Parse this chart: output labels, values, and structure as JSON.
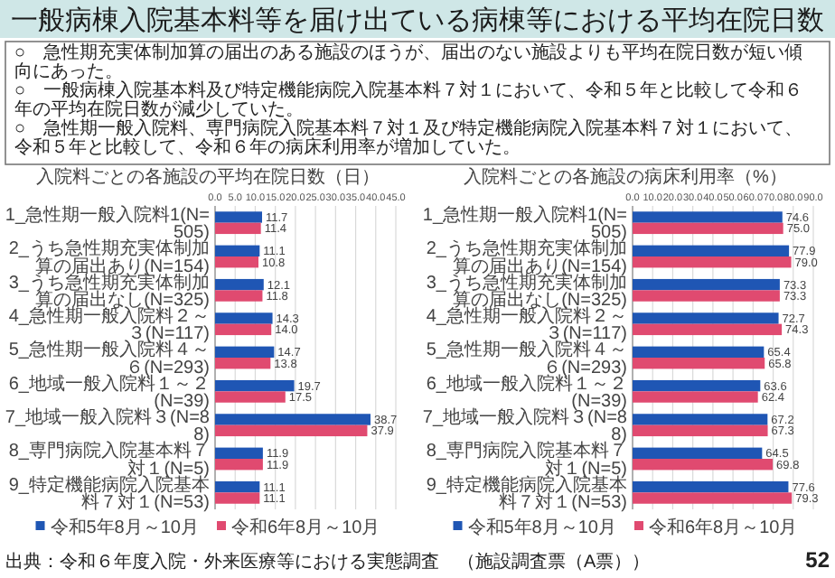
{
  "chart_data": [
    {
      "type": "other",
      "title": "一般病棟入院基本料等を届け出ている病棟等における平均在院日数",
      "annotations": [
        "○　急性期充実体制加算の届出のある施設のほうが、届出のない施設よりも平均在院日数が短い傾向にあった。",
        "○　一般病棟入院基本料及び特定機能病院入院基本料７対１において、令和５年と比較して令和６年の平均在院日数が減少していた。",
        "○　急性期一般入院料、専門病院入院基本料７対１及び特定機能病院入院基本料７対１において、令和５年と比較して、令和６年の病床利用率が増加していた。",
        "出典：令和６年度入院・外来医療等における実態調査　（施設調査票（A票））",
        "52"
      ]
    },
    {
      "type": "bar",
      "orientation": "horizontal",
      "title": "入院料ごとの各施設の平均在院日数（日）",
      "categories": [
        "1_急性期一般入院料1(N=505)",
        "2_うち急性期充実体制加算の届出あり(N=154)",
        "3_うち急性期充実体制加算の届出なし(N=325)",
        "4_急性期一般入院料２～３(N=117)",
        "5_急性期一般入院料４～６(N=293)",
        "6_地域一般入院料１～２(N=39)",
        "7_地域一般入院料３(N=88)",
        "8_専門病院入院基本料７対１(N=5)",
        "9_特定機能病院入院基本料７対１(N=53)"
      ],
      "series": [
        {
          "name": "令和5年8月～10月",
          "color": "#1f56b4",
          "values": [
            11.7,
            11.1,
            12.1,
            14.3,
            14.7,
            19.7,
            38.7,
            11.9,
            11.1
          ],
          "value_labels": [
            "11.7",
            "11.1",
            "12.1",
            "14.3",
            "14.7",
            "19.7",
            "38.7",
            "11.9",
            "11.1"
          ]
        },
        {
          "name": "令和6年8月～10月",
          "color": "#e04a70",
          "values": [
            11.4,
            10.8,
            11.8,
            14.0,
            13.8,
            17.5,
            37.9,
            11.9,
            11.1
          ],
          "value_labels": [
            "11.4",
            "10.8",
            "11.8",
            "14.0",
            "13.8",
            "17.5",
            "37.9",
            "11.9",
            "11.1"
          ]
        }
      ],
      "xlim": [
        0,
        45
      ],
      "xticks": [
        {
          "value": 0,
          "label": "0.0"
        },
        {
          "value": 5,
          "label": "5.0"
        },
        {
          "value": 10,
          "label": "10.0"
        },
        {
          "value": 15,
          "label": "15.0"
        },
        {
          "value": 20,
          "label": "20.0"
        },
        {
          "value": 25,
          "label": "25.0"
        },
        {
          "value": 30,
          "label": "30.0"
        },
        {
          "value": 35,
          "label": "35.0"
        },
        {
          "value": 40,
          "label": "40.0"
        },
        {
          "value": 45,
          "label": "45.0"
        }
      ],
      "grid": "x",
      "legend": "bottom"
    },
    {
      "type": "bar",
      "orientation": "horizontal",
      "title": "入院料ごとの各施設の病床利用率（%）",
      "categories": [
        "1_急性期一般入院料1(N=505)",
        "2_うち急性期充実体制加算の届出あり(N=154)",
        "3_うち急性期充実体制加算の届出なし(N=325)",
        "4_急性期一般入院料２～３(N=117)",
        "5_急性期一般入院料４～６(N=293)",
        "6_地域一般入院料１～２(N=39)",
        "7_地域一般入院料３(N=88)",
        "8_専門病院入院基本料７対１(N=5)",
        "9_特定機能病院入院基本料７対１(N=53)"
      ],
      "series": [
        {
          "name": "令和5年8月～10月",
          "color": "#1f56b4",
          "values": [
            74.6,
            77.9,
            73.3,
            72.7,
            65.4,
            63.6,
            67.2,
            64.5,
            77.6
          ],
          "value_labels": [
            "74.6",
            "77.9",
            "73.3",
            "72.7",
            "65.4",
            "63.6",
            "67.2",
            "64.5",
            "77.6"
          ]
        },
        {
          "name": "令和6年8月～10月",
          "color": "#e04a70",
          "values": [
            75.0,
            79.0,
            73.3,
            74.3,
            65.8,
            62.4,
            67.3,
            69.8,
            79.3
          ],
          "value_labels": [
            "75.0",
            "79.0",
            "73.3",
            "74.3",
            "65.8",
            "62.4",
            "67.3",
            "69.8",
            "79.3"
          ]
        }
      ],
      "xlim": [
        0,
        90
      ],
      "xticks": [
        {
          "value": 0,
          "label": "0.0"
        },
        {
          "value": 10,
          "label": "10.0"
        },
        {
          "value": 20,
          "label": "20.0"
        },
        {
          "value": 30,
          "label": "30.0"
        },
        {
          "value": 40,
          "label": "40.0"
        },
        {
          "value": 50,
          "label": "50.0"
        },
        {
          "value": 60,
          "label": "60.0"
        },
        {
          "value": 70,
          "label": "70.0"
        },
        {
          "value": 80,
          "label": "80.0"
        },
        {
          "value": 90,
          "label": "90.0"
        }
      ],
      "grid": "x",
      "legend": "bottom"
    }
  ]
}
